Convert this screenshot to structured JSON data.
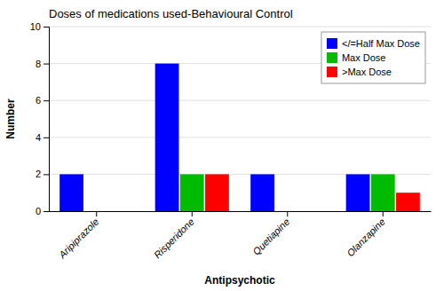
{
  "chart_data": {
    "type": "bar",
    "title": "Doses of medications used-Behavioural Control",
    "xlabel": "Antipsychotic",
    "ylabel": "Number",
    "categories": [
      "Aripiprazole",
      "Risperidone",
      "Quetiapine",
      "Olanzapine"
    ],
    "series": [
      {
        "name": "</=Half Max Dose",
        "color": "#0000FF",
        "values": [
          2,
          8,
          2,
          2
        ]
      },
      {
        "name": "Max Dose",
        "color": "#00BB00",
        "values": [
          0,
          2,
          0,
          2
        ]
      },
      {
        "name": ">Max Dose",
        "color": "#FF0000",
        "values": [
          0,
          2,
          0,
          1
        ]
      }
    ],
    "ylim": [
      0,
      10
    ],
    "yticks": [
      0,
      2,
      4,
      6,
      8,
      10
    ],
    "grid": true,
    "legend": "upper right"
  }
}
